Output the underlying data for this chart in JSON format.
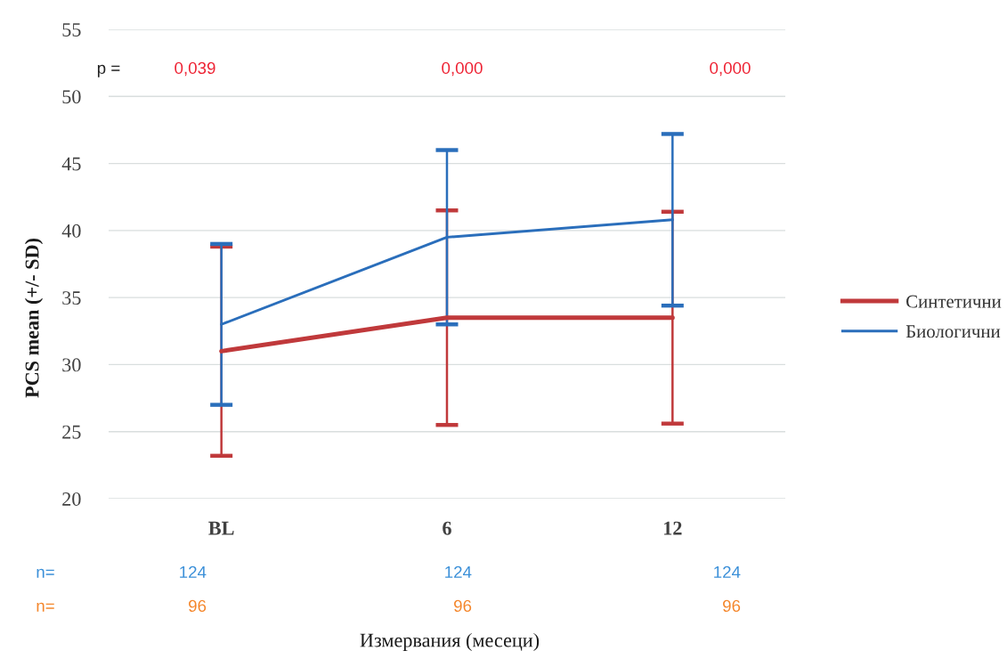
{
  "chart_data": {
    "type": "line",
    "categories": [
      "BL",
      "6",
      "12"
    ],
    "series": [
      {
        "name": "Синтетични",
        "color": "#c0393b",
        "values": [
          31.0,
          33.5,
          33.5
        ],
        "errors": [
          7.8,
          8.0,
          7.9
        ]
      },
      {
        "name": "Биологични",
        "color": "#2a6ebb",
        "values": [
          33.0,
          39.5,
          40.8
        ],
        "errors": [
          6.0,
          6.5,
          6.4
        ]
      }
    ],
    "xlabel": "Измервания (месеци)",
    "ylabel": "PCS mean (+/- SD)",
    "ylim": [
      20,
      55
    ],
    "yticks": [
      20,
      25,
      30,
      35,
      40,
      45,
      50,
      55
    ],
    "grid": "y",
    "legend": "right",
    "line_style": "solid",
    "annotations": [
      "p =",
      "0,039",
      "0,000",
      "0,000",
      "n=",
      "124",
      "124",
      "124",
      "n=",
      "96",
      "96",
      "96"
    ]
  }
}
